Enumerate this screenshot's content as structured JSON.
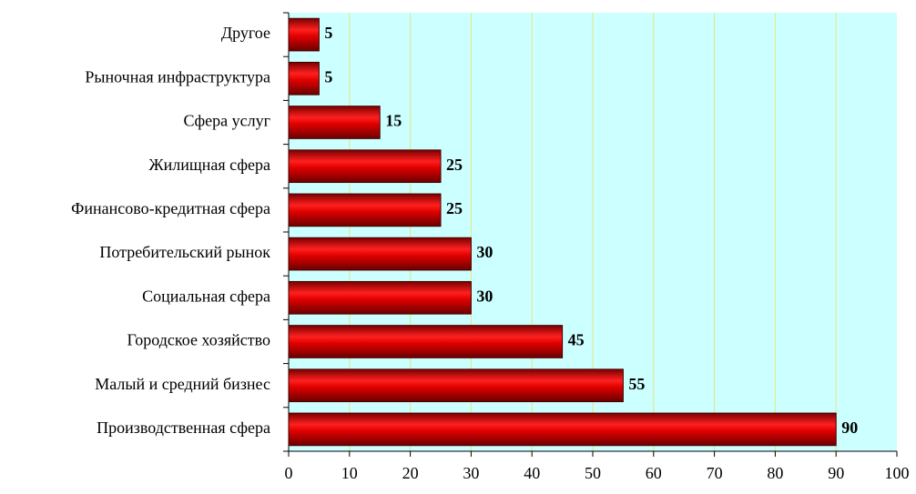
{
  "chart_data": {
    "type": "bar",
    "orientation": "horizontal",
    "categories": [
      "Другое",
      "Рыночная инфраструктура",
      "Сфера услуг",
      "Жилищная сфера",
      "Финансово-кредитная сфера",
      "Потребительский рынок",
      "Социальная сфера",
      "Городское хозяйство",
      "Малый и средний бизнес",
      "Производственная сфера"
    ],
    "values": [
      5,
      5,
      15,
      25,
      25,
      30,
      30,
      45,
      55,
      90
    ],
    "color": "#d40000",
    "xlim": [
      0,
      100
    ],
    "xticks": [
      0,
      10,
      20,
      30,
      40,
      50,
      60,
      70,
      80,
      90,
      100
    ],
    "grid": true
  }
}
